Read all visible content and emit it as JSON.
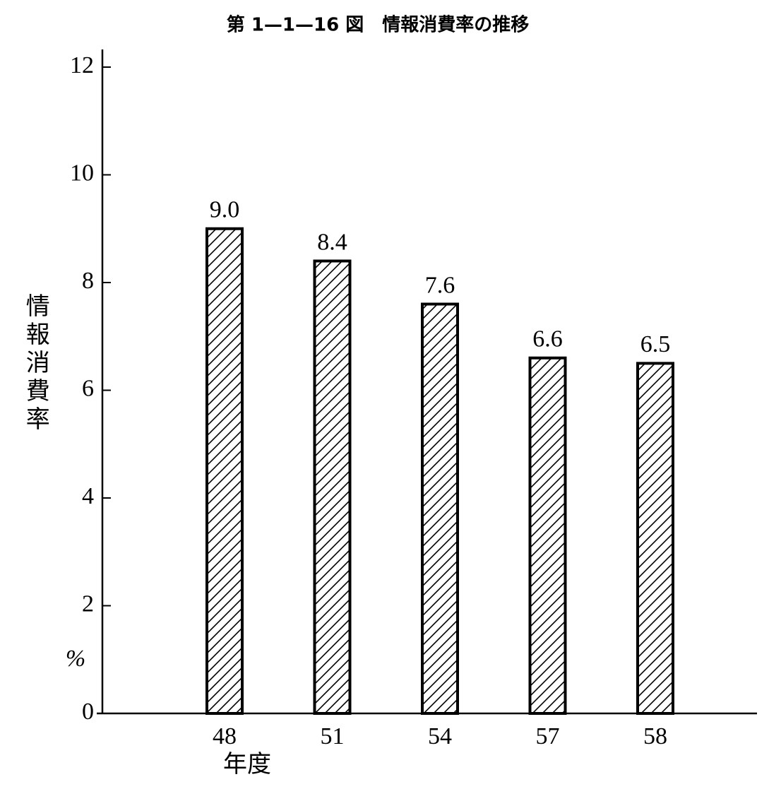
{
  "chart_data": {
    "type": "bar",
    "title": "第 1—1—16 図　情報消費率の推移",
    "y_label": "情報消費率",
    "y_unit": "%",
    "x_label": "年度",
    "categories": [
      "48",
      "51",
      "54",
      "57",
      "58"
    ],
    "values": [
      9.0,
      8.4,
      7.6,
      6.6,
      6.5
    ],
    "value_labels": [
      "9.0",
      "8.4",
      "7.6",
      "6.6",
      "6.5"
    ],
    "ylim": [
      0,
      12
    ],
    "yticks": [
      0,
      2,
      4,
      6,
      8,
      10,
      12
    ],
    "color": "#000000",
    "hatch": "diagonal"
  }
}
